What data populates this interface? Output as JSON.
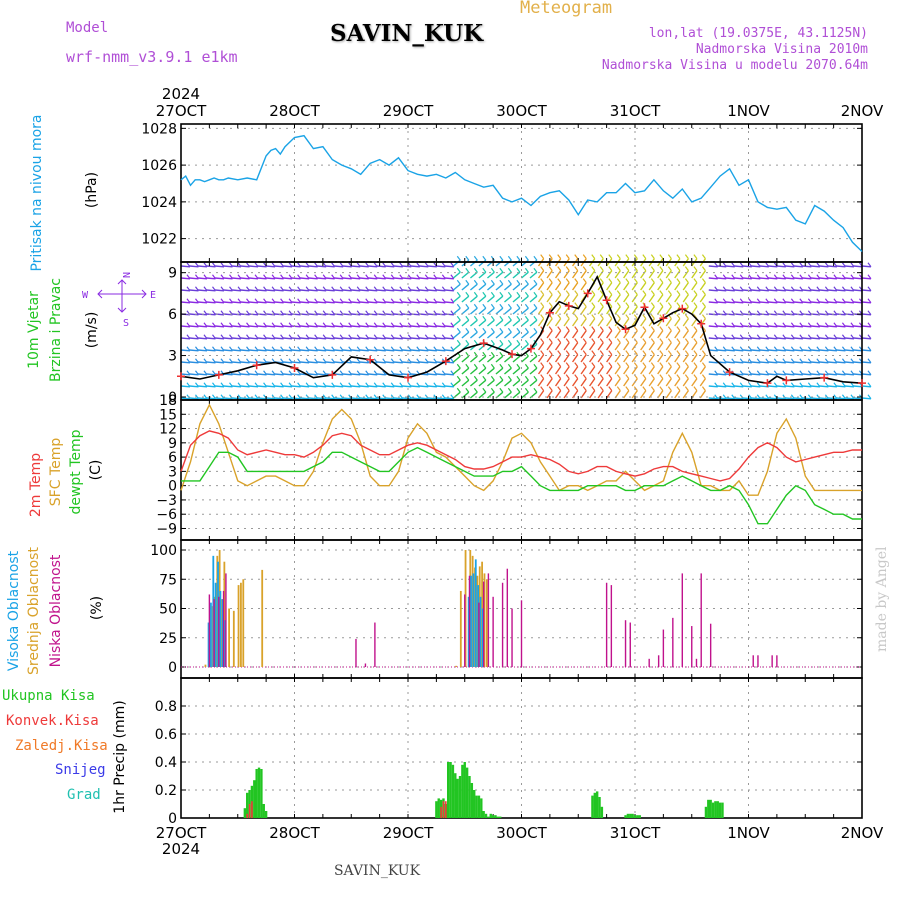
{
  "header": {
    "model_label": "Model",
    "model_name": "wrf-nmm_v3.9.1 e1km",
    "station": "SAVIN_KUK",
    "meteogram_label": "Meteogram",
    "lonlat": "lon,lat (19.0375E, 43.1125N)",
    "elevation": "Nadmorska Visina 2010m",
    "model_elevation": "Nadmorska Visina u modelu 2070.64m",
    "year": "2024",
    "footer_station": "SAVIN_KUK",
    "credit": "made by Angel"
  },
  "time_axis": {
    "ticks": [
      "27OCT",
      "28OCT",
      "29OCT",
      "30OCT",
      "31OCT",
      "1NOV",
      "2NOV"
    ],
    "range_hours": [
      0,
      144
    ]
  },
  "colors": {
    "pressure": "#1aa3e6",
    "temp2m": "#ee3a3a",
    "sfc": "#d9a22a",
    "dewpt": "#22c522",
    "high_cloud": "#1aa3e6",
    "mid_cloud": "#d9a22a",
    "low_cloud": "#c0128c",
    "total_precip": "#22c522",
    "conv_precip": "#ee3a3a",
    "frz_precip": "#f07a28",
    "snow": "#3b3be8",
    "hail": "#20c0b0",
    "title_purple": "#b04fd6",
    "wind_purple": "#8a2be2"
  },
  "chart_data": [
    {
      "type": "line",
      "title": "Pritisak na nivou mora",
      "ylabel": "(hPa)",
      "ylim": [
        1021,
        1028.4
      ],
      "yticks": [
        "1022",
        "1024",
        "1026",
        "1028"
      ],
      "series": [
        {
          "x": [
            0,
            1,
            2,
            3,
            4,
            5,
            6,
            7,
            8,
            9,
            10,
            12,
            14,
            16,
            18,
            19,
            20,
            21,
            22,
            24,
            26,
            28,
            30,
            32,
            34,
            36,
            38,
            40,
            42,
            44,
            46,
            48,
            50,
            52,
            54,
            56,
            58,
            60,
            62,
            64,
            66,
            68,
            70,
            72,
            74,
            76,
            78,
            80,
            82,
            84,
            86,
            88,
            90,
            92,
            94,
            96,
            98,
            100,
            102,
            104,
            106,
            108,
            110,
            112,
            114,
            116,
            118,
            120,
            122,
            124,
            126,
            128,
            130,
            132,
            134,
            136,
            138,
            140,
            142,
            144
          ],
          "values": [
            1025.2,
            1025.4,
            1024.9,
            1025.2,
            1025.2,
            1025.1,
            1025.2,
            1025.3,
            1025.2,
            1025.2,
            1025.3,
            1025.2,
            1025.3,
            1025.2,
            1026.5,
            1026.8,
            1026.9,
            1026.6,
            1027.0,
            1027.5,
            1027.6,
            1026.9,
            1027.0,
            1026.3,
            1026.0,
            1025.8,
            1025.5,
            1026.1,
            1026.3,
            1026.0,
            1026.4,
            1025.7,
            1025.5,
            1025.4,
            1025.5,
            1025.3,
            1025.6,
            1025.2,
            1025.0,
            1024.8,
            1024.9,
            1024.2,
            1024.0,
            1024.2,
            1023.8,
            1024.3,
            1024.5,
            1024.6,
            1024.1,
            1023.3,
            1024.1,
            1024.0,
            1024.5,
            1024.5,
            1025.0,
            1024.5,
            1024.6,
            1025.2,
            1024.6,
            1024.2,
            1024.7,
            1024.0,
            1024.2,
            1024.8,
            1025.4,
            1025.8,
            1024.9,
            1025.2,
            1024.0,
            1023.7,
            1023.6,
            1023.7,
            1023.0,
            1022.8,
            1023.8,
            1023.5,
            1023.0,
            1022.6,
            1021.8,
            1021.3
          ]
        }
      ]
    },
    {
      "type": "line",
      "title": "10m Vjetar Brzina i Pravac",
      "ylabel": "(m/s)",
      "ylim": [
        0,
        9.7
      ],
      "yticks": [
        "0",
        "3",
        "6",
        "9"
      ],
      "compass": {
        "n": "N",
        "s": "S",
        "w": "W",
        "e": "E"
      },
      "series": [
        {
          "name": "10m wind speed",
          "x": [
            0,
            4,
            8,
            12,
            16,
            20,
            24,
            28,
            32,
            36,
            40,
            44,
            48,
            52,
            56,
            60,
            64,
            68,
            70,
            72,
            74,
            76,
            78,
            80,
            82,
            84,
            86,
            88,
            90,
            92,
            94,
            96,
            98,
            100,
            102,
            104,
            106,
            108,
            110,
            112,
            116,
            120,
            124,
            126,
            128,
            132,
            136,
            140,
            144
          ],
          "values": [
            1.5,
            1.3,
            1.6,
            1.9,
            2.3,
            2.5,
            2.1,
            1.4,
            1.6,
            2.9,
            2.7,
            1.6,
            1.4,
            1.8,
            2.6,
            3.5,
            3.9,
            3.4,
            3.1,
            3.0,
            3.5,
            4.5,
            6.1,
            6.9,
            6.6,
            6.4,
            7.5,
            8.7,
            7.0,
            5.4,
            4.9,
            5.2,
            6.5,
            5.3,
            5.7,
            6.1,
            6.4,
            6.0,
            5.3,
            3.0,
            1.8,
            1.2,
            1.0,
            1.5,
            1.2,
            1.3,
            1.4,
            1.1,
            1.0
          ]
        }
      ]
    },
    {
      "type": "line",
      "title": "2m Temp / SFC Temp / dewpt Temp",
      "ylabel": "(C)",
      "ylim": [
        -11,
        18
      ],
      "yticks": [
        "−9",
        "−6",
        "−3",
        "0",
        "3",
        "6",
        "9",
        "12",
        "15",
        "18"
      ],
      "series": [
        {
          "name": "2m Temp",
          "x": [
            0,
            2,
            4,
            6,
            8,
            10,
            12,
            14,
            16,
            18,
            20,
            22,
            24,
            26,
            28,
            30,
            32,
            34,
            36,
            38,
            40,
            42,
            44,
            46,
            48,
            50,
            52,
            54,
            56,
            58,
            60,
            62,
            64,
            66,
            68,
            70,
            72,
            74,
            76,
            78,
            80,
            82,
            84,
            86,
            88,
            90,
            92,
            94,
            96,
            98,
            100,
            102,
            104,
            106,
            108,
            110,
            112,
            114,
            116,
            118,
            120,
            122,
            124,
            126,
            128,
            130,
            132,
            134,
            136,
            138,
            140,
            142,
            144
          ],
          "values": [
            3,
            8.5,
            10.5,
            11.5,
            11,
            10,
            7.5,
            6.5,
            7,
            7.5,
            7,
            6.5,
            6.5,
            6,
            7,
            8.5,
            10.5,
            11,
            10.5,
            8.5,
            7.5,
            6.5,
            6.5,
            7.5,
            8.5,
            9,
            8.5,
            7.5,
            6.5,
            5.5,
            4,
            3.5,
            3.5,
            4,
            5,
            6,
            6,
            6.5,
            6,
            5.5,
            4.5,
            3,
            2.5,
            3,
            4,
            4,
            3,
            2.5,
            2,
            2.5,
            3.5,
            4,
            4,
            3,
            2.5,
            2,
            1.5,
            1,
            1.5,
            3.5,
            6,
            8,
            9,
            8,
            6,
            5,
            5.5,
            6,
            6.5,
            7,
            7,
            7.5,
            7.5
          ]
        },
        {
          "name": "SFC Temp",
          "x": [
            0,
            2,
            4,
            6,
            8,
            10,
            12,
            14,
            16,
            18,
            20,
            22,
            24,
            26,
            28,
            30,
            32,
            34,
            36,
            38,
            40,
            42,
            44,
            46,
            48,
            50,
            52,
            54,
            56,
            58,
            60,
            62,
            64,
            66,
            68,
            70,
            72,
            74,
            76,
            78,
            80,
            82,
            84,
            86,
            88,
            90,
            92,
            94,
            96,
            98,
            100,
            102,
            104,
            106,
            108,
            110,
            112,
            114,
            116,
            118,
            120,
            122,
            124,
            126,
            128,
            130,
            132,
            134,
            136,
            138,
            140,
            142,
            144
          ],
          "values": [
            -1,
            5,
            13,
            17,
            13,
            7,
            1,
            0,
            1,
            2,
            2,
            1,
            0,
            0,
            3,
            9,
            14,
            16,
            14,
            9,
            2,
            0,
            0,
            3,
            10,
            13,
            11,
            7,
            6,
            4,
            2,
            0,
            -1,
            1,
            5,
            10,
            11,
            9,
            5,
            2,
            -1,
            0,
            0,
            -1,
            0,
            1,
            1,
            3,
            1,
            -1,
            0,
            1,
            7,
            11,
            7,
            0,
            0,
            -1,
            -1,
            1,
            -2,
            -2,
            3,
            11,
            14,
            10,
            2,
            -1,
            -1,
            -1,
            -1,
            -1,
            -1
          ]
        },
        {
          "name": "dewpt Temp",
          "x": [
            0,
            2,
            4,
            6,
            8,
            10,
            12,
            14,
            16,
            18,
            20,
            22,
            24,
            26,
            28,
            30,
            32,
            34,
            36,
            38,
            40,
            42,
            44,
            46,
            48,
            50,
            52,
            54,
            56,
            58,
            60,
            62,
            64,
            66,
            68,
            70,
            72,
            74,
            76,
            78,
            80,
            82,
            84,
            86,
            88,
            90,
            92,
            94,
            96,
            98,
            100,
            102,
            104,
            106,
            108,
            110,
            112,
            114,
            116,
            118,
            120,
            122,
            124,
            126,
            128,
            130,
            132,
            134,
            136,
            138,
            140,
            142,
            144
          ],
          "values": [
            1,
            1,
            1,
            4,
            7,
            7,
            6,
            3,
            3,
            3,
            3,
            3,
            3,
            3,
            4,
            5,
            7,
            7,
            6,
            5,
            4,
            3,
            3,
            5,
            7,
            8,
            7,
            6,
            5,
            4,
            3,
            2,
            2,
            2,
            3,
            3,
            4,
            2,
            0,
            -1,
            -1,
            -1,
            -1,
            0,
            0,
            0,
            0,
            -1,
            -1,
            0,
            0,
            0,
            1,
            2,
            1,
            0,
            -1,
            -1,
            0,
            -1,
            -4,
            -8,
            -8,
            -5,
            -2,
            0,
            -1,
            -4,
            -5,
            -6,
            -6,
            -7,
            -7
          ]
        }
      ]
    },
    {
      "type": "bar",
      "title": "Visoka Oblacnost / Srednja Oblacnost / Niska Oblacnost",
      "ylabel": "(%)",
      "ylim": [
        0,
        100
      ],
      "yticks": [
        "0",
        "25",
        "50",
        "75",
        "100"
      ],
      "series": [
        {
          "name": "Visoka Oblacnost",
          "x": [
            6,
            6.5,
            7,
            7.5,
            8,
            8.5,
            9,
            9.5,
            61,
            61.5,
            62,
            62.5,
            63,
            63.5,
            64
          ],
          "values": [
            38,
            55,
            95,
            72,
            90,
            65,
            58,
            40,
            60,
            78,
            80,
            92,
            70,
            60,
            50
          ]
        },
        {
          "name": "Srednja Oblacnost",
          "x": [
            5,
            6,
            6.5,
            7,
            7.5,
            8,
            8.5,
            9,
            10,
            11,
            12,
            12.5,
            13,
            17,
            58,
            59,
            60,
            61,
            61.5,
            62,
            62.5,
            63,
            63.5,
            64,
            64.5
          ],
          "values": [
            2,
            30,
            52,
            60,
            95,
            100,
            58,
            90,
            50,
            48,
            70,
            72,
            75,
            83,
            1,
            65,
            100,
            100,
            95,
            85,
            78,
            86,
            90,
            80,
            75
          ]
        },
        {
          "name": "Niska Oblacnost",
          "x": [
            6,
            7,
            8,
            9,
            9.5,
            37,
            39,
            41,
            60,
            61,
            63,
            64,
            65,
            66,
            68,
            69,
            70,
            72,
            90,
            91,
            94,
            95,
            99,
            101,
            102,
            104,
            106,
            108,
            109,
            110,
            112,
            121,
            122,
            125,
            126
          ],
          "values": [
            62,
            58,
            60,
            65,
            80,
            24,
            3,
            38,
            62,
            78,
            55,
            73,
            80,
            60,
            72,
            84,
            50,
            57,
            72,
            70,
            40,
            38,
            7,
            10,
            32,
            42,
            80,
            35,
            7,
            80,
            37,
            10,
            10,
            10,
            10
          ]
        }
      ]
    },
    {
      "type": "bar",
      "title": "1hr Precip",
      "ylabel": "1hr Precip (mm)",
      "ylim": [
        0,
        1.0
      ],
      "yticks": [
        "0",
        "0.2",
        "0.4",
        "0.6",
        "0.8"
      ],
      "legend": [
        "Ukupna Kisa",
        "Konvek.Kisa",
        "Zaledj.Kisa",
        "Snijeg",
        "Grad"
      ],
      "series": [
        {
          "name": "Ukupna Kisa",
          "x": [
            13.5,
            14,
            14.5,
            15,
            15.5,
            16,
            16.5,
            17,
            17.5,
            18,
            54,
            54.5,
            55,
            55.5,
            56,
            56.5,
            57,
            57.5,
            58,
            58.5,
            59,
            59.5,
            60,
            60.5,
            61,
            61.5,
            62,
            62.5,
            63,
            63.5,
            64,
            64.5,
            65,
            65.5,
            66,
            66.5,
            67,
            67.5,
            87,
            87.5,
            88,
            88.5,
            89,
            94,
            94.5,
            95,
            95.5,
            96,
            96.5,
            97,
            111,
            111.5,
            112,
            112.5,
            113,
            113.5,
            114,
            114.5
          ],
          "values": [
            0.07,
            0.18,
            0.2,
            0.23,
            0.27,
            0.35,
            0.36,
            0.35,
            0.1,
            0.05,
            0.12,
            0.14,
            0.13,
            0.14,
            0.1,
            0.4,
            0.4,
            0.38,
            0.32,
            0.28,
            0.3,
            0.38,
            0.4,
            0.36,
            0.3,
            0.25,
            0.2,
            0.16,
            0.16,
            0.14,
            0.05,
            0.03,
            0.01,
            0.03,
            0.02,
            0.02,
            0.01,
            0.01,
            0.16,
            0.18,
            0.19,
            0.15,
            0.08,
            0.02,
            0.03,
            0.03,
            0.03,
            0.02,
            0.02,
            0.02,
            0.08,
            0.13,
            0.13,
            0.11,
            0.12,
            0.12,
            0.11,
            0.11
          ]
        },
        {
          "name": "Konvek.Kisa",
          "x": [
            14,
            14.5,
            15,
            55,
            55.5,
            56
          ],
          "values": [
            0.03,
            0.1,
            0.12,
            0.08,
            0.12,
            0.12
          ]
        }
      ]
    }
  ]
}
